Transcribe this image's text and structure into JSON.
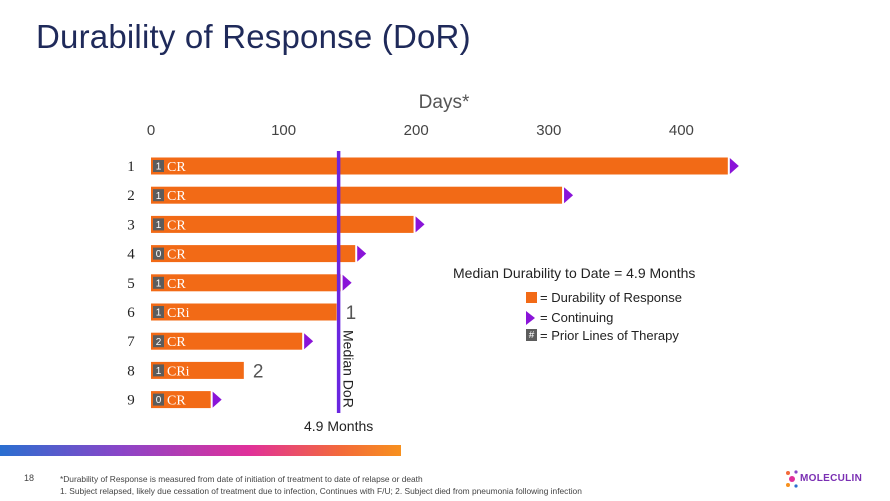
{
  "title": "Durability of Response (DoR)",
  "chart_data": {
    "type": "bar",
    "orientation": "horizontal",
    "title": "Days*",
    "xlim": [
      0,
      440
    ],
    "x_ticks": [
      0,
      100,
      200,
      300,
      400
    ],
    "categories": [
      "1",
      "2",
      "3",
      "4",
      "5",
      "6",
      "7",
      "8",
      "9"
    ],
    "series": [
      {
        "name": "Durability of Response",
        "values": [
          435,
          310,
          198,
          154,
          143,
          140,
          114,
          70,
          45
        ]
      }
    ],
    "response": [
      "CR",
      "CR",
      "CR",
      "CR",
      "CR",
      "CRi",
      "CR",
      "CRi",
      "CR"
    ],
    "prior_lines": [
      "1",
      "1",
      "1",
      "0",
      "1",
      "1",
      "2",
      "1",
      "0"
    ],
    "continuing": [
      true,
      true,
      true,
      true,
      true,
      false,
      true,
      false,
      true
    ],
    "notes": {
      "5": "1",
      "7": "2"
    },
    "median": {
      "value": 143,
      "label": "Median DoR",
      "value_label": "4.9 Months"
    },
    "legend": {
      "title": "Median Durability to Date = 4.9 Months",
      "entries": [
        "= Durability of Response",
        "= Continuing",
        "= Prior Lines of Therapy"
      ],
      "prior_symbol": "#"
    },
    "colors": {
      "bar": "#f26a16",
      "continuing": "#8a14d8",
      "median_line": "#6a26e0",
      "prior_box": "#5c5c5c"
    }
  },
  "footer": {
    "page_number": "18",
    "footnote_1": "*Durability of Response is measured from date of initiation of treatment to date of relapse or death",
    "footnote_2": "1. Subject relapsed, likely due cessation of treatment due to infection, Continues with F/U; 2. Subject died from pneumonia following infection",
    "logo": "MOLECULIN"
  }
}
